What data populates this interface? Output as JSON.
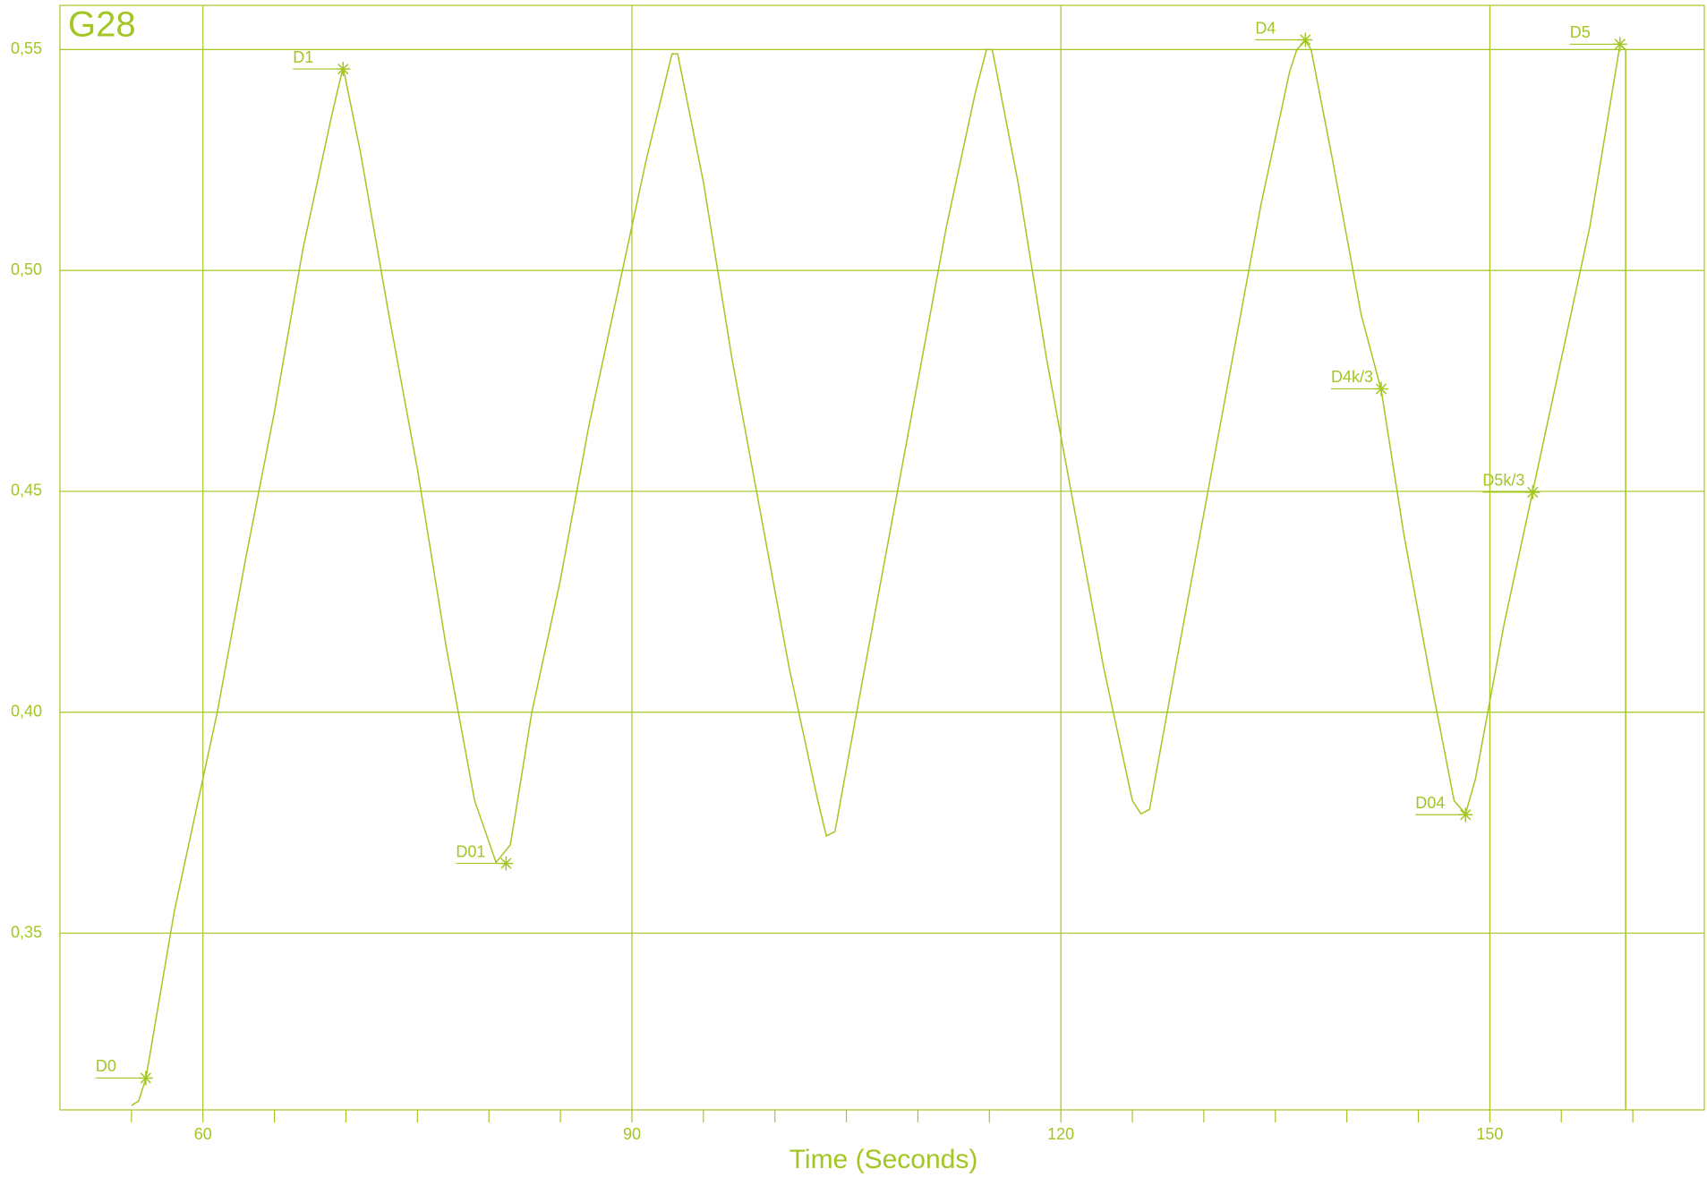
{
  "chart_data": {
    "type": "line",
    "title": "G28",
    "xlabel": "Time (Seconds)",
    "color": "#a3c623",
    "grid": true,
    "xlim": [
      50,
      165
    ],
    "ylim": [
      0.31,
      0.56
    ],
    "xticks": [
      60,
      90,
      120,
      150
    ],
    "xminorticks": [
      55,
      65,
      70,
      75,
      80,
      85,
      95,
      100,
      105,
      110,
      115,
      125,
      130,
      135,
      140,
      145,
      155,
      160
    ],
    "yticks": [
      {
        "value": 0.35,
        "label": "0,35"
      },
      {
        "value": 0.4,
        "label": "0,40"
      },
      {
        "value": 0.45,
        "label": "0,45"
      },
      {
        "value": 0.5,
        "label": "0,50"
      },
      {
        "value": 0.55,
        "label": "0,55"
      }
    ],
    "x": [
      55.0,
      55.5,
      56.0,
      58,
      60,
      61,
      63,
      65,
      67,
      69,
      69.8,
      71,
      73,
      75,
      77,
      79,
      80.5,
      81.5,
      83,
      85,
      87,
      89,
      91,
      92.8,
      93.2,
      95,
      97,
      99,
      101,
      103,
      103.6,
      104.2,
      106,
      108,
      110,
      112,
      114,
      114.8,
      115.2,
      117,
      119,
      121,
      123,
      125,
      125.6,
      126.2,
      128,
      130,
      132,
      134,
      136,
      136.5,
      137.1,
      137.5,
      139,
      141,
      142.4,
      144,
      146,
      147.5,
      148.3,
      149,
      151,
      153,
      155,
      157,
      159.1,
      159.5,
      159.5
    ],
    "values": [
      0.311,
      0.312,
      0.317,
      0.355,
      0.385,
      0.4,
      0.435,
      0.468,
      0.505,
      0.535,
      0.546,
      0.527,
      0.49,
      0.455,
      0.415,
      0.38,
      0.366,
      0.37,
      0.4,
      0.43,
      0.465,
      0.495,
      0.525,
      0.549,
      0.549,
      0.52,
      0.48,
      0.445,
      0.41,
      0.38,
      0.372,
      0.373,
      0.405,
      0.44,
      0.475,
      0.51,
      0.54,
      0.55,
      0.55,
      0.52,
      0.48,
      0.445,
      0.41,
      0.38,
      0.377,
      0.378,
      0.41,
      0.445,
      0.48,
      0.515,
      0.545,
      0.55,
      0.552,
      0.55,
      0.525,
      0.49,
      0.473,
      0.44,
      0.405,
      0.38,
      0.377,
      0.385,
      0.42,
      0.45,
      0.48,
      0.51,
      0.551,
      0.55,
      0.31
    ],
    "annotations": [
      {
        "label": "D0",
        "x": 56.0,
        "y": 0.3172
      },
      {
        "label": "D1",
        "x": 69.8,
        "y": 0.5456
      },
      {
        "label": "D01",
        "x": 81.2,
        "y": 0.3658
      },
      {
        "label": "D4",
        "x": 137.1,
        "y": 0.5522
      },
      {
        "label": "D4k/3",
        "x": 142.4,
        "y": 0.4732
      },
      {
        "label": "D04",
        "x": 148.3,
        "y": 0.3768
      },
      {
        "label": "D5k/3",
        "x": 153.0,
        "y": 0.4498
      },
      {
        "label": "D5",
        "x": 159.1,
        "y": 0.5512
      }
    ]
  }
}
